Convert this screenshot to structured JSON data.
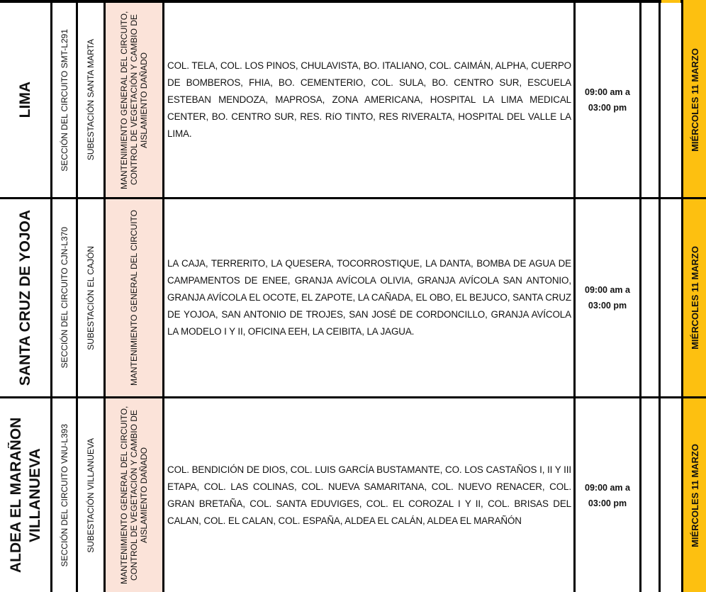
{
  "table": {
    "rows": [
      {
        "municipality": "LIMA",
        "circuit": "SECCIÓN DEL CIRCUITO SMT-L291",
        "substation": "SUBESTACIÓN SANTA MARTA",
        "work": "MANTENIMIENTO GENERAL DEL CIRCUITO, CONTROL DE VEGETACIÓN Y CAMBIO DE AISLAMIENTO DAÑADO",
        "sectors": "COL. TELA, COL. LOS PINOS, CHULAVISTA, BO. ITALIANO, COL. CAIMÁN, ALPHA, CUERPO DE BOMBEROS, FHIA, BO. CEMENTERIO, COL. SULA, BO. CENTRO SUR, ESCUELA ESTEBAN MENDOZA, MAPROSA, ZONA AMERICANA, HOSPITAL LA LIMA MEDICAL CENTER, BO. CENTRO SUR, RES. RíO TINTO, RES RIVERALTA, HOSPITAL DEL VALLE LA LIMA.",
        "time": [
          "09:00 am a",
          "03:00 pm"
        ],
        "date": "MIÉRCOLES 11  MARZO"
      },
      {
        "municipality": "SANTA CRUZ DE YOJOA",
        "circuit": "SECCIÓN DEL CIRCUITO CJN-L370",
        "substation": "SUBESTACIÓN EL CAJÓN",
        "work": "MANTENIMIENTO GENERAL DEL CIRCUITO",
        "sectors": "LA CAJA, TERRERITO, LA QUESERA, TOCORROSTIQUE, LA DANTA, BOMBA DE AGUA DE CAMPAMENTOS DE ENEE, GRANJA AVÍCOLA OLIVIA, GRANJA AVÍCOLA SAN ANTONIO, GRANJA AVÍCOLA EL OCOTE, EL ZAPOTE, LA CAÑADA, EL OBO, EL BEJUCO, SANTA CRUZ DE YOJOA, SAN ANTONIO DE TROJES, SAN JOSÉ DE CORDONCILLO, GRANJA AVÍCOLA LA MODELO I Y II, OFICINA EEH, LA CEIBITA, LA JAGUA.",
        "time": [
          "09:00 am a",
          "03:00 pm"
        ],
        "date": "MIÉRCOLES 11  MARZO"
      },
      {
        "municipality": "ALDEA EL MARAÑON VILLANUEVA",
        "circuit": "SECCIÓN DEL CIRCUITO VNU-L393",
        "substation": "SUBESTACIÓN VILLANUEVA",
        "work": "MANTENIMIENTO GENERAL DEL CIRCUITO, CONTROL DE VEGETACIÓN Y CAMBIO DE AISLAMIENTO DAÑADO",
        "sectors": "COL. BENDICIÓN DE DIOS, COL. LUIS GARCÍA BUSTAMANTE, CO. LOS CASTAÑOS I, II Y III ETAPA, COL. LAS COLINAS, COL. NUEVA SAMARITANA, COL. NUEVO RENACER, COL. GRAN BRETAÑA, COL. SANTA EDUVIGES, COL. EL COROZAL I Y II, COL. BRISAS DEL CALAN, COL. EL CALAN, COL. ESPAÑA, ALDEA EL CALÁN, ALDEA EL MARAÑÓN",
        "time": [
          "09:00 am a",
          "03:00 pm"
        ],
        "date": "MIÉRCOLES 11  MARZO"
      }
    ]
  }
}
